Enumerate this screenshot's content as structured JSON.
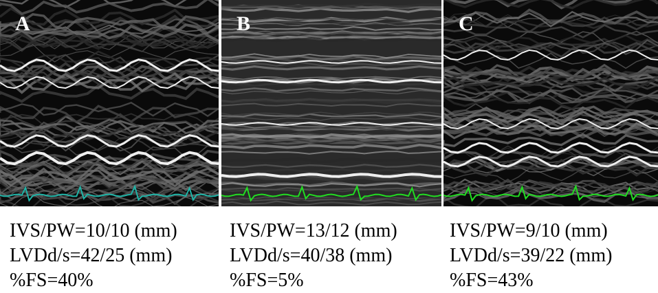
{
  "panels": [
    {
      "label": "A",
      "caption": [
        "IVS/PW=10/10 (mm)",
        "LVDd/s=42/25 (mm)",
        "%FS=40%"
      ]
    },
    {
      "label": "B",
      "caption": [
        "IVS/PW=13/12 (mm)",
        "LVDd/s=40/38 (mm)",
        "%FS=5%"
      ]
    },
    {
      "label": "C",
      "caption": [
        "IVS/PW=9/10 (mm)",
        "LVDd/s=39/22 (mm)",
        "%FS=43%"
      ]
    }
  ]
}
